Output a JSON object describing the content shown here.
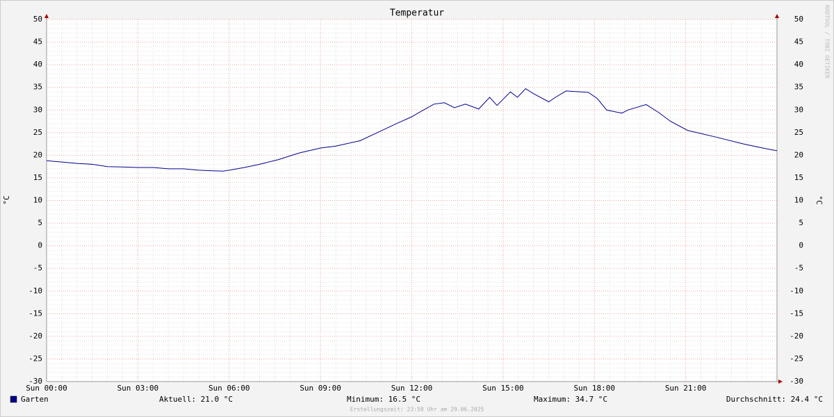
{
  "chart_data": {
    "type": "line",
    "title": "Temperatur",
    "y_label": "°C",
    "x": [
      0,
      0.5,
      1,
      1.5,
      2,
      2.5,
      3,
      3.5,
      4,
      4.5,
      5,
      5.3,
      5.8,
      6,
      6.5,
      7,
      7.6,
      8.3,
      9,
      9.5,
      10.3,
      10.9,
      11.5,
      12,
      12.2,
      12.73,
      13.07,
      13.4,
      13.76,
      14.2,
      14.56,
      14.8,
      15.24,
      15.47,
      15.74,
      16.0,
      16.5,
      16.72,
      17.07,
      17.8,
      18.1,
      18.4,
      18.9,
      19.1,
      19.7,
      20.1,
      20.5,
      21.06,
      22,
      22.9,
      23.6,
      24
    ],
    "series": [
      {
        "name": "Garten",
        "color": "#00008b",
        "values": [
          18.8,
          18.5,
          18.2,
          18.0,
          17.5,
          17.4,
          17.3,
          17.3,
          17.0,
          17.0,
          16.7,
          16.6,
          16.5,
          16.7,
          17.3,
          18.0,
          19.0,
          20.5,
          21.6,
          22.0,
          23.2,
          25.1,
          27.0,
          28.5,
          29.3,
          31.3,
          31.6,
          30.5,
          31.3,
          30.2,
          32.8,
          31.0,
          34.0,
          32.8,
          34.7,
          33.6,
          31.8,
          32.8,
          34.2,
          33.9,
          32.5,
          30.0,
          29.3,
          30.0,
          31.2,
          29.5,
          27.5,
          25.5,
          24.0,
          22.5,
          21.5,
          21.0
        ]
      }
    ],
    "xlim": [
      0,
      24
    ],
    "xticks": [
      {
        "value": 0,
        "label": "Sun 00:00"
      },
      {
        "value": 3,
        "label": "Sun 03:00"
      },
      {
        "value": 6,
        "label": "Sun 06:00"
      },
      {
        "value": 9,
        "label": "Sun 09:00"
      },
      {
        "value": 12,
        "label": "Sun 12:00"
      },
      {
        "value": 15,
        "label": "Sun 15:00"
      },
      {
        "value": 18,
        "label": "Sun 18:00"
      },
      {
        "value": 21,
        "label": "Sun 21:00"
      }
    ],
    "ylim": [
      -30,
      50
    ],
    "yticks": [
      -30,
      -25,
      -20,
      -15,
      -10,
      -5,
      0,
      5,
      10,
      15,
      20,
      25,
      30,
      35,
      40,
      45,
      50
    ],
    "grid": true,
    "stats": [
      "Aktuell: 21.0 °C",
      "Minimum: 16.5 °C",
      "Maximum: 34.7 °C",
      "Durchschnitt: 24.4 °C"
    ],
    "footnote": "Erstellungszeit: 23:58 Uhr am 29.06.2025",
    "watermark": "RRDTOOL / TOBI OETIKER"
  }
}
